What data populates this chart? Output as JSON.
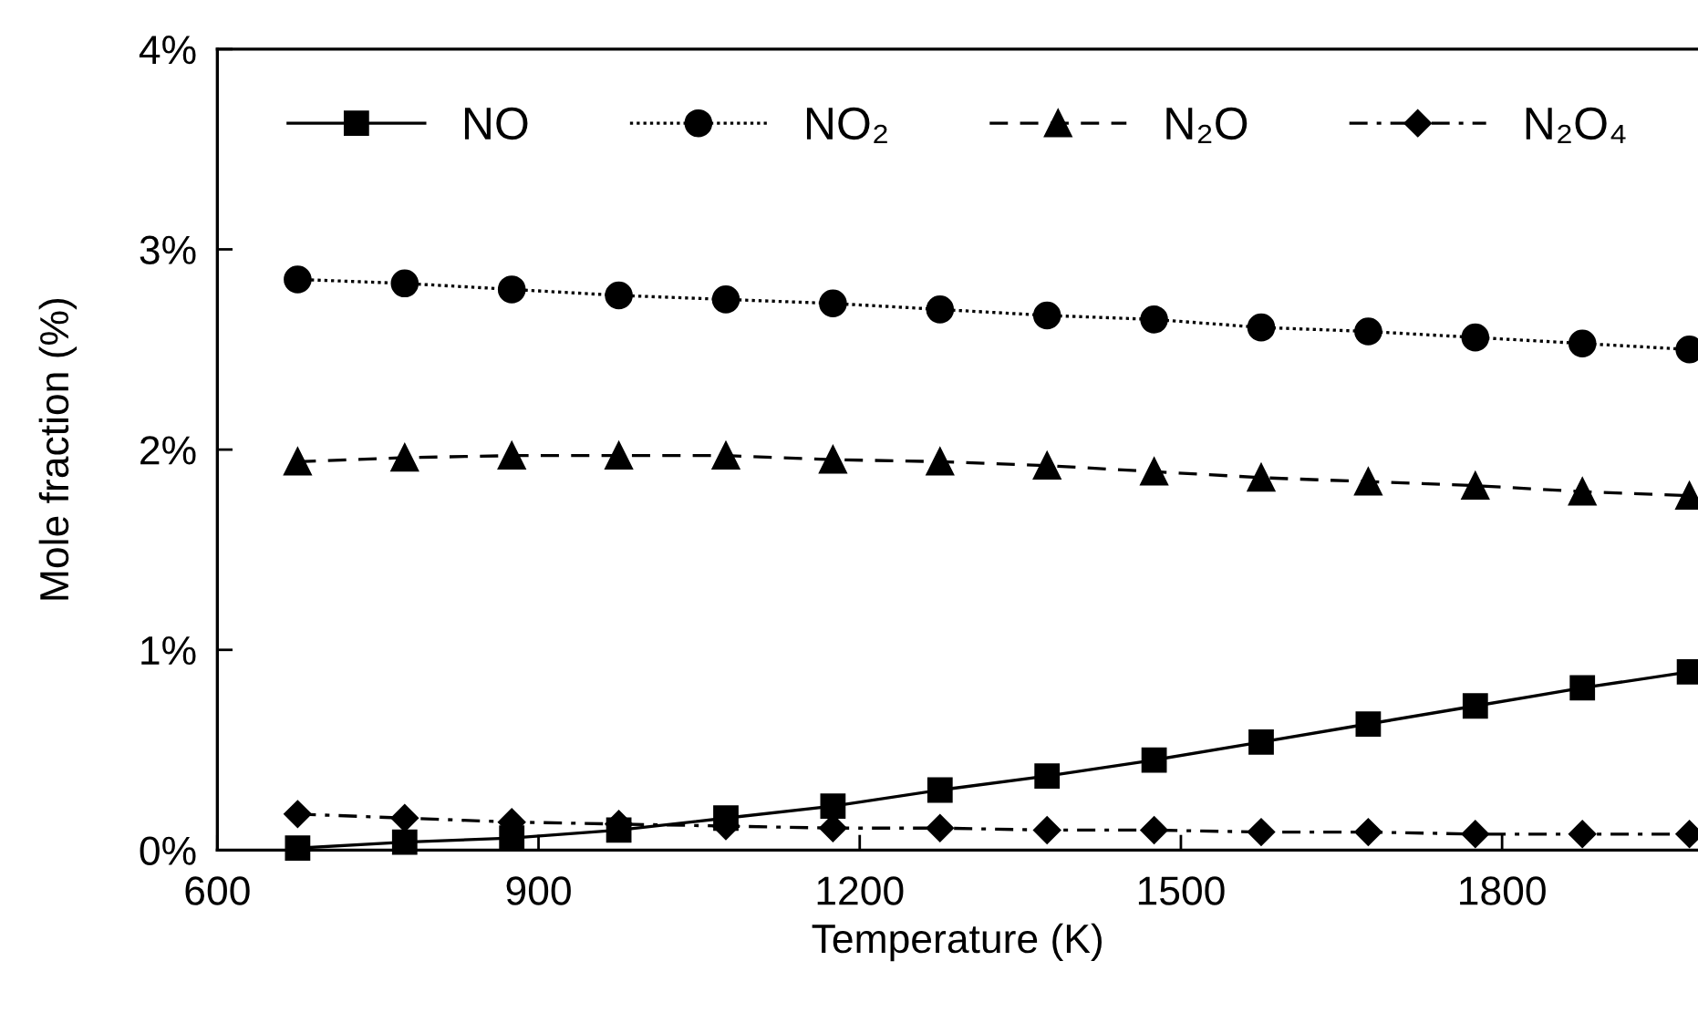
{
  "chart_data": {
    "type": "line",
    "xlabel": "Temperature (K)",
    "ylabel": "Mole fraction (%)",
    "x": [
      675,
      775,
      875,
      975,
      1075,
      1175,
      1275,
      1375,
      1475,
      1575,
      1675,
      1775,
      1875,
      1975
    ],
    "series": [
      {
        "name": "NO",
        "color": "#000000",
        "marker": "square",
        "line_style": "solid",
        "values": [
          0.01,
          0.04,
          0.06,
          0.1,
          0.16,
          0.22,
          0.3,
          0.37,
          0.45,
          0.54,
          0.63,
          0.72,
          0.81,
          0.89
        ]
      },
      {
        "name": "NO₂",
        "color": "#000000",
        "marker": "circle",
        "line_style": "dotted",
        "values": [
          2.85,
          2.83,
          2.8,
          2.77,
          2.75,
          2.73,
          2.7,
          2.67,
          2.65,
          2.61,
          2.59,
          2.56,
          2.53,
          2.5
        ]
      },
      {
        "name": "N₂O",
        "color": "#000000",
        "marker": "triangle",
        "line_style": "dashed",
        "values": [
          1.94,
          1.96,
          1.97,
          1.97,
          1.97,
          1.95,
          1.94,
          1.92,
          1.89,
          1.86,
          1.84,
          1.82,
          1.79,
          1.77
        ]
      },
      {
        "name": "N₂O₄",
        "color": "#000000",
        "marker": "diamond",
        "line_style": "dashdot",
        "values": [
          0.18,
          0.16,
          0.14,
          0.13,
          0.12,
          0.11,
          0.11,
          0.1,
          0.1,
          0.09,
          0.09,
          0.08,
          0.08,
          0.08
        ]
      }
    ],
    "xlim": [
      600,
      1983
    ],
    "xticks": [
      600,
      900,
      1200,
      1500,
      1800
    ],
    "ylim": [
      0,
      4
    ],
    "yticks": [
      {
        "value": 0,
        "label": "0%"
      },
      {
        "value": 1,
        "label": "1%"
      },
      {
        "value": 2,
        "label": "2%"
      },
      {
        "value": 3,
        "label": "3%"
      },
      {
        "value": 4,
        "label": "4%"
      }
    ],
    "grid": false,
    "legend": "top"
  }
}
